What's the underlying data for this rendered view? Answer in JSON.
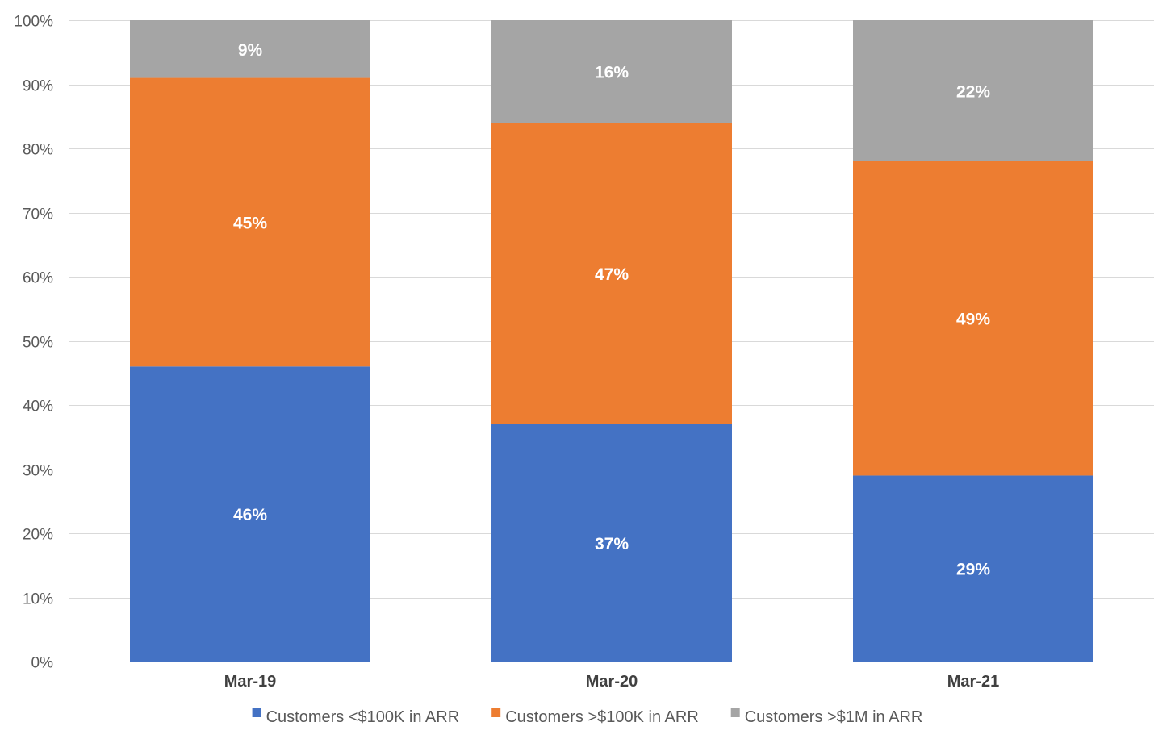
{
  "chart_data": {
    "type": "bar",
    "stacked": true,
    "percent_stacked": true,
    "categories": [
      "Mar-19",
      "Mar-20",
      "Mar-21"
    ],
    "series": [
      {
        "name": "Customers <$100K in ARR",
        "values": [
          46,
          37,
          29
        ],
        "labels": [
          "46%",
          "37%",
          "29%"
        ],
        "color": "#4472c4"
      },
      {
        "name": "Customers >$100K in ARR",
        "values": [
          45,
          47,
          49
        ],
        "labels": [
          "45%",
          "47%",
          "49%"
        ],
        "color": "#ed7d31"
      },
      {
        "name": "Customers >$1M in ARR",
        "values": [
          9,
          16,
          22
        ],
        "labels": [
          "9%",
          "16%",
          "22%"
        ],
        "color": "#a5a5a5"
      }
    ],
    "yticks": [
      0,
      10,
      20,
      30,
      40,
      50,
      60,
      70,
      80,
      90,
      100
    ],
    "ytick_labels": [
      "0%",
      "10%",
      "20%",
      "30%",
      "40%",
      "50%",
      "60%",
      "70%",
      "80%",
      "90%",
      "100%"
    ],
    "ylim": [
      0,
      100
    ],
    "grid": true,
    "legend": "bottom-center"
  }
}
